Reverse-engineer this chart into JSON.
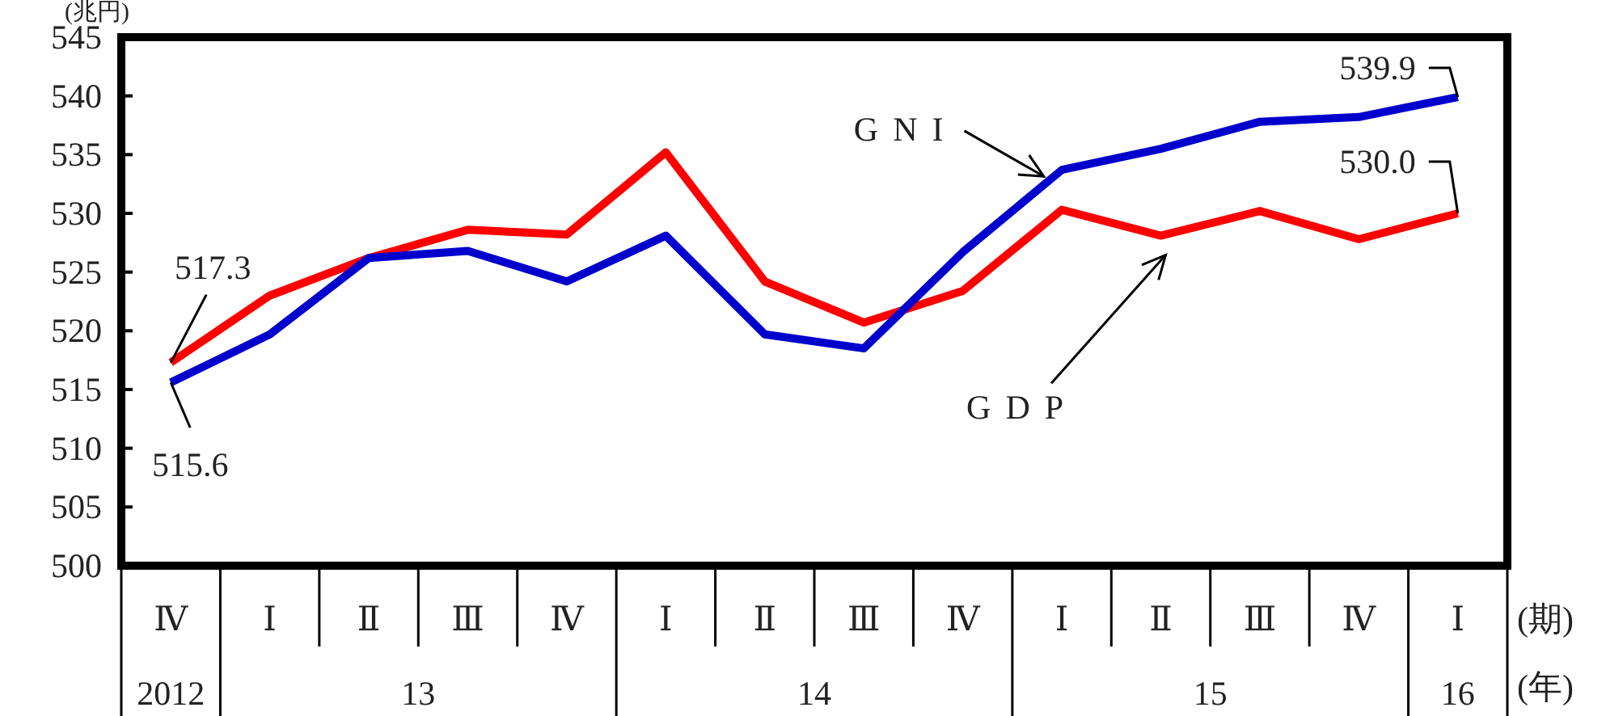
{
  "chart_data": {
    "type": "line",
    "ylabel": "(兆円)",
    "xlabel": "(期)",
    "categories": [
      "Ⅳ",
      "Ⅰ",
      "Ⅱ",
      "Ⅲ",
      "Ⅳ",
      "Ⅰ",
      "Ⅱ",
      "Ⅲ",
      "Ⅳ",
      "Ⅰ",
      "Ⅱ",
      "Ⅲ",
      "Ⅳ",
      "Ⅰ"
    ],
    "series": [
      {
        "name": "GDP",
        "color": "#ff0000",
        "values": [
          517.3,
          523.0,
          526.2,
          528.6,
          528.2,
          535.2,
          524.2,
          520.7,
          523.4,
          530.3,
          528.1,
          530.2,
          527.8,
          530.0
        ],
        "value_labels": [
          "517.3",
          null,
          null,
          null,
          null,
          null,
          null,
          null,
          null,
          null,
          null,
          null,
          null,
          "530.0"
        ]
      },
      {
        "name": "GNI",
        "color": "#0000cc",
        "values": [
          515.6,
          519.7,
          526.2,
          526.8,
          524.2,
          528.1,
          519.7,
          518.5,
          526.7,
          533.7,
          535.5,
          537.8,
          538.2,
          539.9
        ],
        "value_labels": [
          "515.6",
          null,
          null,
          null,
          null,
          null,
          null,
          null,
          null,
          null,
          null,
          null,
          null,
          "539.9"
        ]
      }
    ],
    "ylim": [
      500,
      545
    ],
    "yticks": [
      500,
      505,
      510,
      515,
      520,
      525,
      530,
      535,
      540,
      545
    ],
    "annotations": [
      "2012",
      "13",
      "14",
      "15",
      "16",
      "(年)"
    ],
    "grid": false,
    "line_style": "solid"
  }
}
